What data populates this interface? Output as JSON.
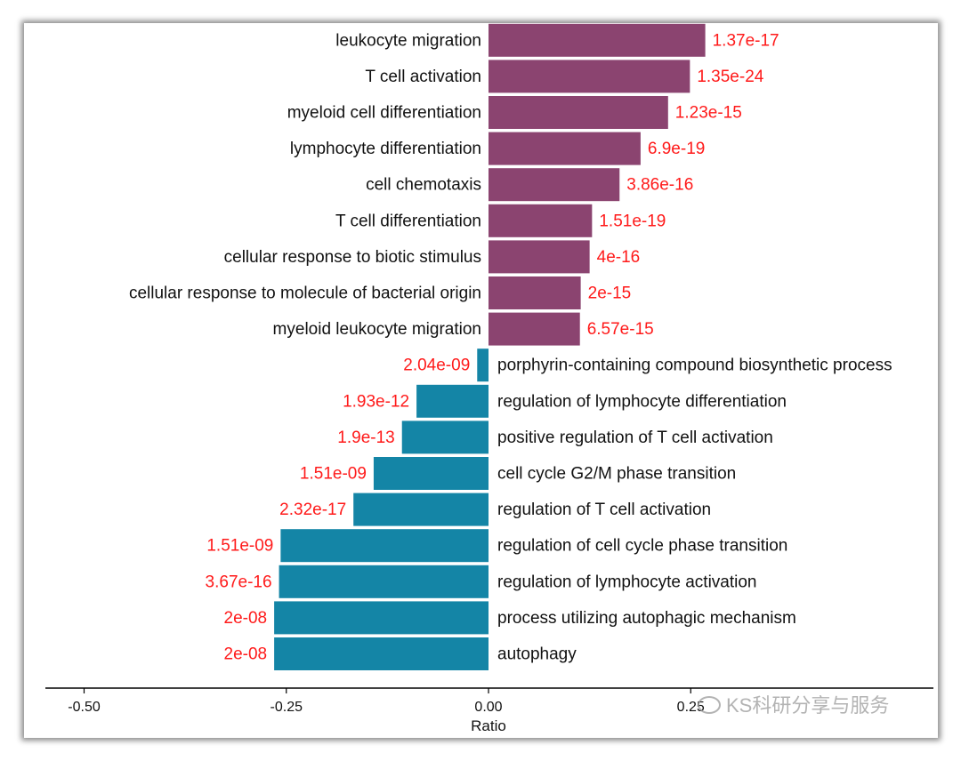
{
  "chart_data": {
    "type": "bar",
    "orientation": "horizontal",
    "title": "",
    "xlabel": "Ratio",
    "ylabel": "",
    "xlim": [
      -0.55,
      0.55
    ],
    "xticks": [
      -0.5,
      -0.25,
      0.0,
      0.25
    ],
    "xtick_labels": [
      "-0.50",
      "-0.25",
      "0.00",
      "0.25"
    ],
    "colors": {
      "up": "#8b4470",
      "down": "#1485a6",
      "pvalue": "#ff1a1a",
      "axis": "#000000"
    },
    "series": [
      {
        "name": "up",
        "categories": [
          "leukocyte migration",
          "T cell activation",
          "myeloid cell differentiation",
          "lymphocyte differentiation",
          "cell chemotaxis",
          "T cell differentiation",
          "cellular response to biotic stimulus",
          "cellular response to molecule of bacterial origin",
          "myeloid leukocyte migration"
        ],
        "values": [
          0.268,
          0.249,
          0.222,
          0.188,
          0.162,
          0.128,
          0.125,
          0.114,
          0.113
        ],
        "labels": [
          "1.37e-17",
          "1.35e-24",
          "1.23e-15",
          "6.9e-19",
          "3.86e-16",
          "1.51e-19",
          "4e-16",
          "2e-15",
          "6.57e-15"
        ]
      },
      {
        "name": "down",
        "categories": [
          "porphyrin-containing compound biosynthetic process",
          "regulation of lymphocyte differentiation",
          "positive regulation of T cell activation",
          "cell cycle G2/M phase transition",
          "regulation of T cell activation",
          "regulation of cell cycle phase transition",
          "regulation of lymphocyte activation",
          "process utilizing autophagic mechanism",
          "autophagy"
        ],
        "values": [
          -0.014,
          -0.089,
          -0.107,
          -0.142,
          -0.167,
          -0.257,
          -0.259,
          -0.265,
          -0.265
        ],
        "labels": [
          "2.04e-09",
          "1.93e-12",
          "1.9e-13",
          "1.51e-09",
          "2.32e-17",
          "1.51e-09",
          "3.67e-16",
          "2e-08",
          "2e-08"
        ]
      }
    ]
  },
  "watermark": "KS科研分享与服务"
}
